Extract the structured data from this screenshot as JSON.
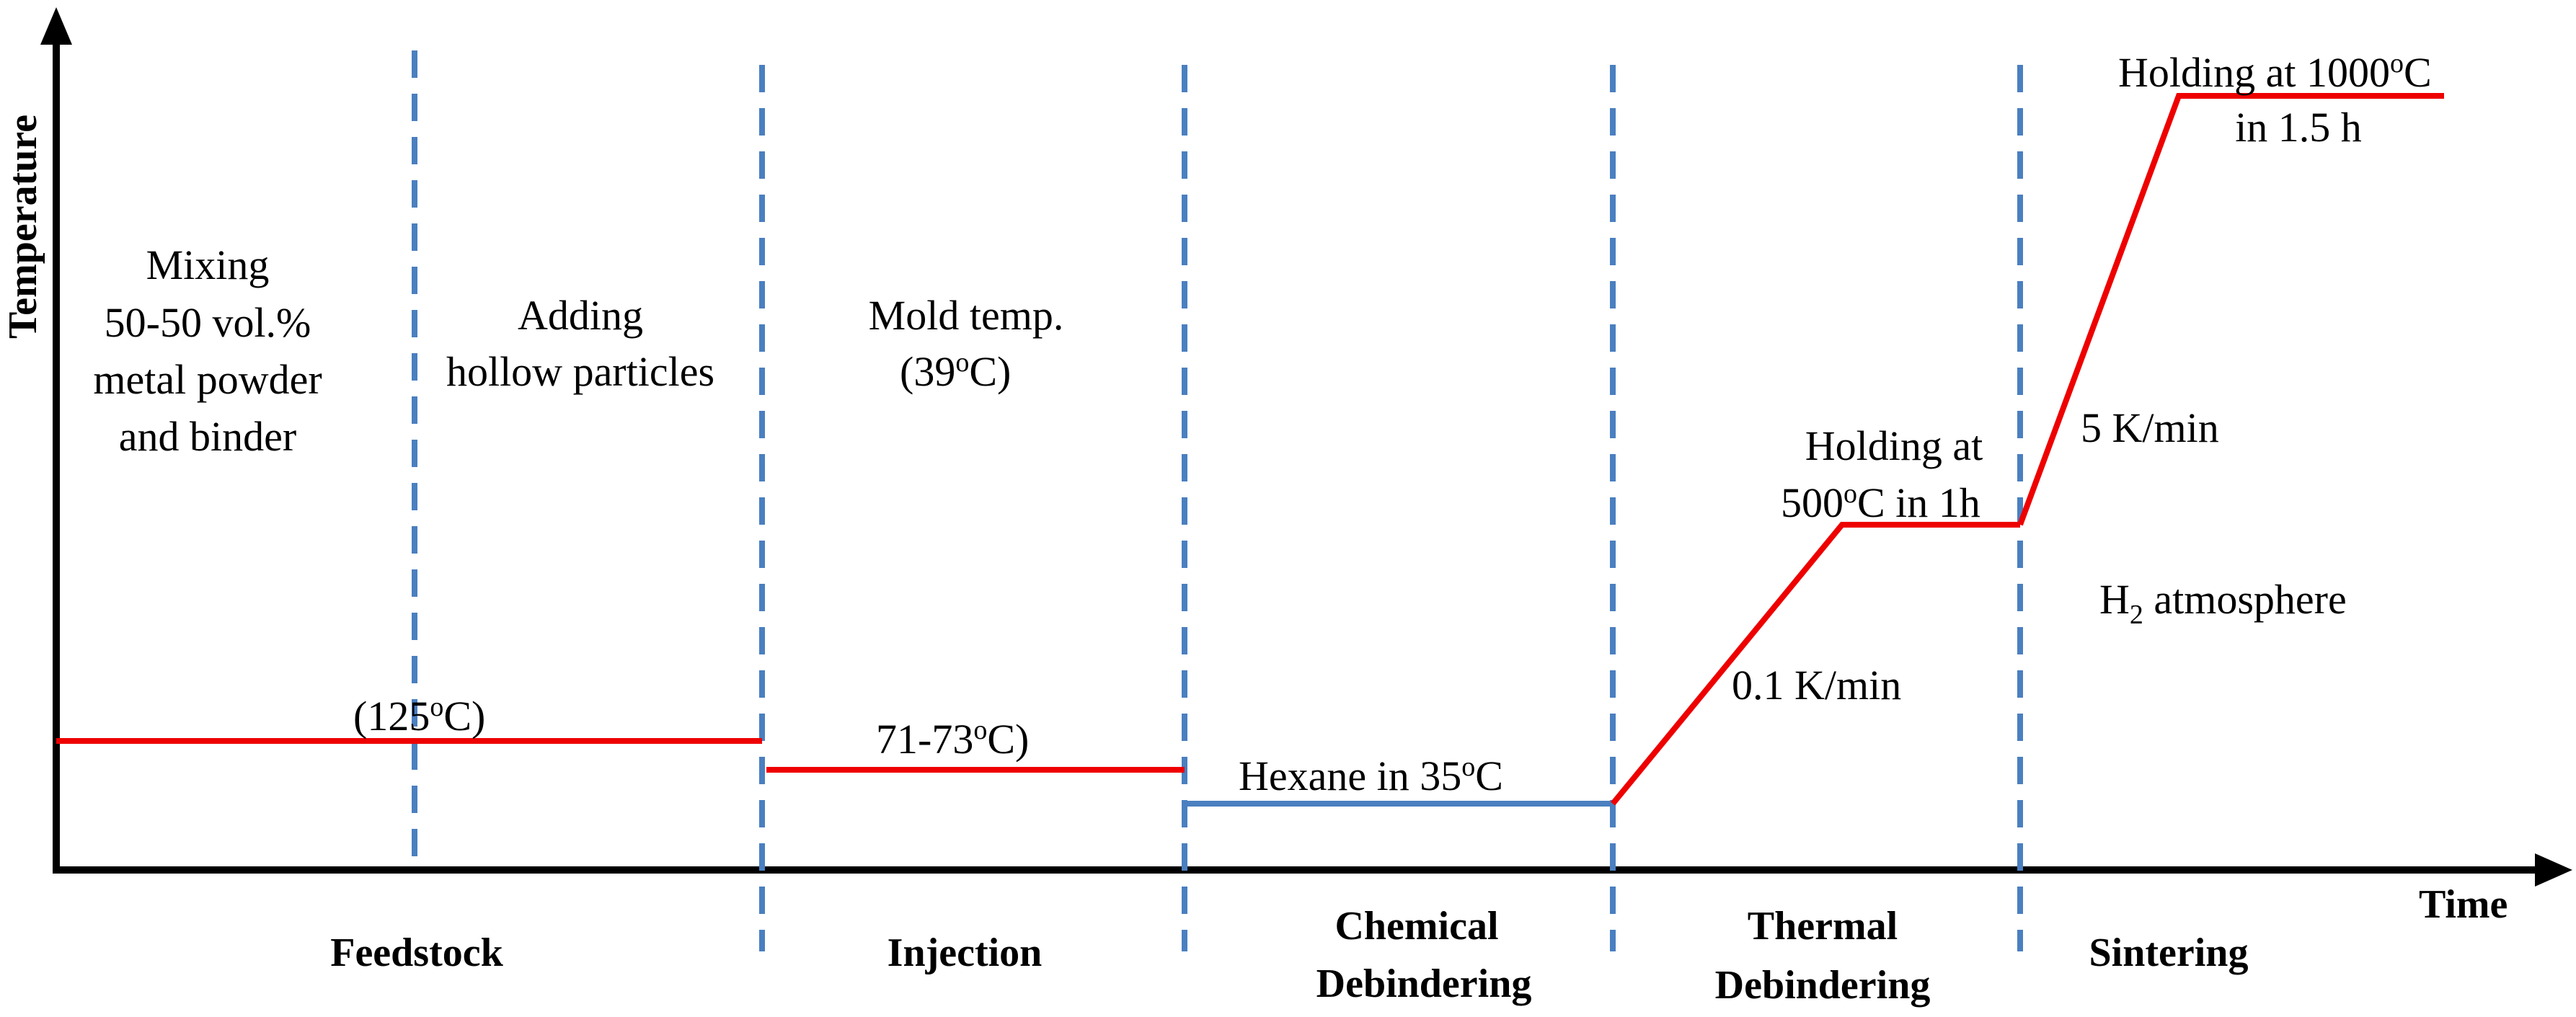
{
  "axes": {
    "y_label": "Temperature",
    "x_label": "Time"
  },
  "stages": {
    "feedstock": "Feedstock",
    "injection": "Injection",
    "chemical_line1": "Chemical",
    "chemical_line2": "Debindering",
    "thermal_line1": "Thermal",
    "thermal_line2": "Debindering",
    "sintering": "Sintering"
  },
  "notes": {
    "mixing_1": "Mixing",
    "mixing_2": "50-50 vol.%",
    "mixing_3": "metal powder",
    "mixing_4": "and binder",
    "adding_1": "Adding",
    "adding_2": "hollow particles",
    "mold_1": "Mold temp.",
    "mold_2a": "(39",
    "mold_2sup": "o",
    "mold_2b": "C)",
    "feed_temp_a": "(125",
    "feed_temp_sup": "o",
    "feed_temp_b": "C)",
    "inj_temp_a": "71-73",
    "inj_temp_sup": "o",
    "inj_temp_b": "C)",
    "hexane_a": "Hexane in 35",
    "hexane_sup": "o",
    "hexane_b": "C",
    "rate_thermal": "0.1 K/min",
    "hold500_1": "Holding at",
    "hold500_2a": "500",
    "hold500_2sup": "o",
    "hold500_2b": "C in 1h",
    "rate_sinter": "5 K/min",
    "h2_a": "H",
    "h2_sub": "2",
    "h2_b": " atmosphere",
    "hold1000_1a": "Holding at 1000",
    "hold1000_1sup": "o",
    "hold1000_1b": "C",
    "hold1000_2": "in 1.5 h"
  },
  "colors": {
    "temperature_profile": "#ee0000",
    "chemical_debinding_line": "#4a7fc0",
    "stage_dividers": "#4a7fc0",
    "axes": "#000000"
  }
}
